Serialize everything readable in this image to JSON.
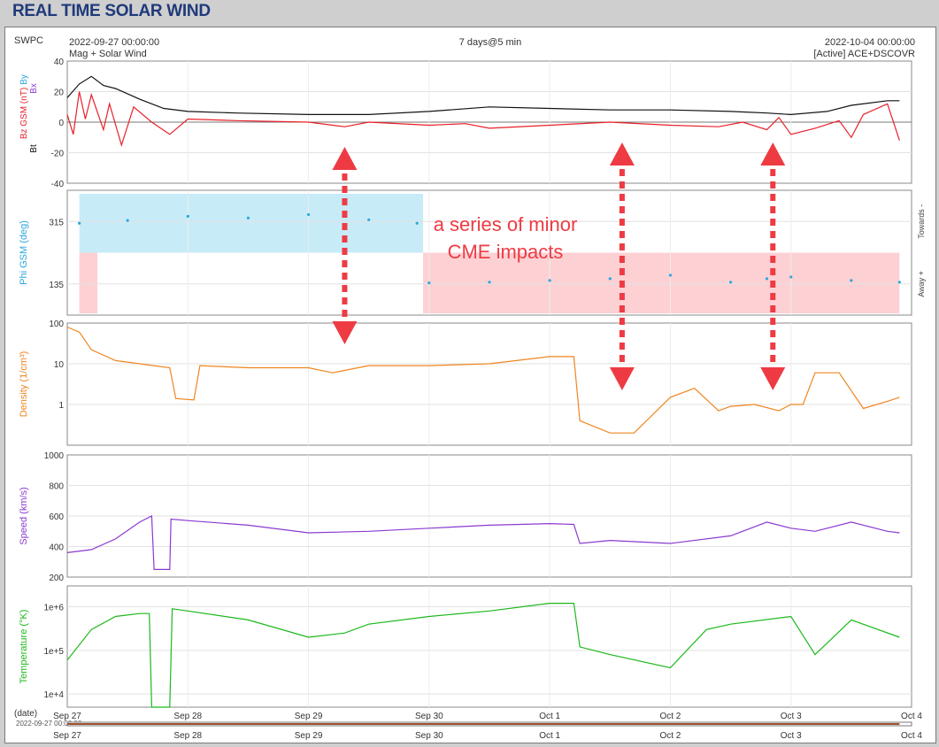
{
  "header": {
    "title": "REAL TIME SOLAR WIND"
  },
  "info": {
    "source": "SWPC",
    "start": "2022-09-27 00:00:00",
    "subtitle": "Mag + Solar Wind",
    "span": "7 days@5 min",
    "end": "2022-10-04 00:00:00",
    "spacecraft": "[Active] ACE+DSCOVR"
  },
  "annotation": {
    "line1": "a series of minor",
    "line2": "CME impacts"
  },
  "colors": {
    "bz": "#e8202a",
    "bt": "#111111",
    "phi": "#2aa8dc",
    "phi_towards_band": "#c8ebf8",
    "phi_away_band": "#fdd0d4",
    "density": "#f08520",
    "speed": "#8a3ad0",
    "temperature": "#1cb81c",
    "arrow": "#ee3b43",
    "title": "#1f3a7a"
  },
  "xaxis": {
    "labels": [
      "Sep 27",
      "Sep 28",
      "Sep 29",
      "Sep 30",
      "Oct 1",
      "Oct 2",
      "Oct 3",
      "Oct 4"
    ],
    "date_label": "(date)",
    "range_label": "2022-09-27 00:00:00"
  },
  "chart_data": [
    {
      "type": "line",
      "panel": "mag",
      "ylabel_bz": "Bz GSM (nT)",
      "ylabel_bx": "Bx",
      "ylabel_by": "By",
      "ylabel_bt": "Bt",
      "ylim": [
        -40,
        40
      ],
      "yticks": [
        "40",
        "20",
        "0",
        "-20",
        "-40"
      ],
      "x_unit": "days since 2022-09-27",
      "series": [
        {
          "name": "Bt",
          "x": [
            0.0,
            0.1,
            0.2,
            0.3,
            0.4,
            0.6,
            0.8,
            1.0,
            1.4,
            2.0,
            2.5,
            3.0,
            3.5,
            4.0,
            4.5,
            5.0,
            5.5,
            5.8,
            6.0,
            6.3,
            6.5,
            6.8,
            6.9
          ],
          "y": [
            16,
            25,
            30,
            24,
            22,
            15,
            9,
            7,
            6,
            5,
            5,
            7,
            10,
            9,
            8,
            8,
            7,
            6,
            5,
            7,
            11,
            14,
            14
          ]
        },
        {
          "name": "Bz",
          "x": [
            0.0,
            0.05,
            0.1,
            0.15,
            0.2,
            0.3,
            0.35,
            0.45,
            0.55,
            0.7,
            0.85,
            1.0,
            1.4,
            2.0,
            2.3,
            2.5,
            3.0,
            3.3,
            3.5,
            4.0,
            4.5,
            5.0,
            5.4,
            5.6,
            5.8,
            5.9,
            6.0,
            6.2,
            6.4,
            6.5,
            6.6,
            6.8,
            6.9
          ],
          "y": [
            5,
            -8,
            20,
            2,
            18,
            -5,
            12,
            -15,
            10,
            0,
            -8,
            2,
            1,
            0,
            -3,
            0,
            -2,
            -1,
            -4,
            -2,
            0,
            -2,
            -3,
            0,
            -5,
            3,
            -8,
            -4,
            1,
            -10,
            5,
            12,
            -12
          ]
        }
      ]
    },
    {
      "type": "scatter",
      "panel": "phi",
      "ylabel": "Phi GSM (deg)",
      "ylim": [
        45,
        405
      ],
      "yticks": [
        "315",
        "135"
      ],
      "right_towards": "Towards -",
      "right_away": "Away +",
      "series": [
        {
          "name": "Phi",
          "x": [
            0.1,
            0.5,
            1.0,
            1.5,
            2.0,
            2.5,
            2.9,
            3.0,
            3.5,
            4.0,
            4.5,
            5.0,
            5.5,
            5.8,
            6.0,
            6.5,
            6.9
          ],
          "y": [
            310,
            318,
            330,
            325,
            335,
            320,
            310,
            138,
            140,
            145,
            150,
            160,
            140,
            150,
            155,
            145,
            140
          ]
        }
      ]
    },
    {
      "type": "line",
      "panel": "density",
      "ylabel": "Density (1/cm³)",
      "scale": "log",
      "ylim": [
        0.1,
        100
      ],
      "yticks": [
        "100",
        "10",
        "1"
      ],
      "series": [
        {
          "name": "Density",
          "x": [
            0.0,
            0.1,
            0.2,
            0.4,
            0.6,
            0.85,
            0.9,
            1.05,
            1.1,
            1.5,
            2.0,
            2.2,
            2.5,
            3.0,
            3.5,
            4.0,
            4.2,
            4.25,
            4.5,
            4.7,
            5.0,
            5.2,
            5.4,
            5.5,
            5.7,
            5.9,
            6.0,
            6.1,
            6.2,
            6.4,
            6.6,
            6.8,
            6.9
          ],
          "y": [
            80,
            60,
            22,
            12,
            10,
            8,
            1.4,
            1.3,
            9,
            8,
            8,
            6,
            9,
            9,
            10,
            15,
            15,
            0.4,
            0.2,
            0.2,
            1.5,
            2.5,
            0.7,
            0.9,
            1.0,
            0.7,
            1.0,
            1.0,
            6,
            6,
            0.8,
            1.2,
            1.5
          ]
        }
      ]
    },
    {
      "type": "line",
      "panel": "speed",
      "ylabel": "Speed (km/s)",
      "ylim": [
        200,
        1000
      ],
      "yticks": [
        "1000",
        "800",
        "600",
        "400",
        "200"
      ],
      "series": [
        {
          "name": "Speed",
          "x": [
            0.0,
            0.2,
            0.4,
            0.6,
            0.7,
            0.72,
            0.85,
            0.86,
            1.0,
            1.5,
            2.0,
            2.5,
            3.0,
            3.5,
            4.0,
            4.2,
            4.25,
            4.5,
            5.0,
            5.5,
            5.8,
            6.0,
            6.2,
            6.5,
            6.8,
            6.9
          ],
          "y": [
            360,
            380,
            450,
            560,
            600,
            250,
            250,
            580,
            570,
            540,
            490,
            500,
            520,
            540,
            550,
            545,
            420,
            440,
            420,
            470,
            560,
            520,
            500,
            560,
            500,
            490
          ]
        }
      ]
    },
    {
      "type": "line",
      "panel": "temperature",
      "ylabel": "Temperature (°K)",
      "scale": "log",
      "ylim": [
        5000,
        3000000
      ],
      "yticks": [
        "1e+6",
        "1e+5",
        "1e+4"
      ],
      "series": [
        {
          "name": "Temperature",
          "x": [
            0.0,
            0.2,
            0.4,
            0.6,
            0.68,
            0.7,
            0.85,
            0.87,
            1.0,
            1.5,
            2.0,
            2.3,
            2.5,
            3.0,
            3.5,
            4.0,
            4.2,
            4.25,
            4.5,
            5.0,
            5.3,
            5.5,
            6.0,
            6.2,
            6.5,
            6.9
          ],
          "y": [
            60000,
            300000,
            600000,
            700000,
            700000,
            5000,
            5000,
            900000,
            800000,
            500000,
            200000,
            250000,
            400000,
            600000,
            800000,
            1200000,
            1200000,
            120000,
            80000,
            40000,
            300000,
            400000,
            600000,
            80000,
            500000,
            200000
          ]
        }
      ]
    }
  ]
}
